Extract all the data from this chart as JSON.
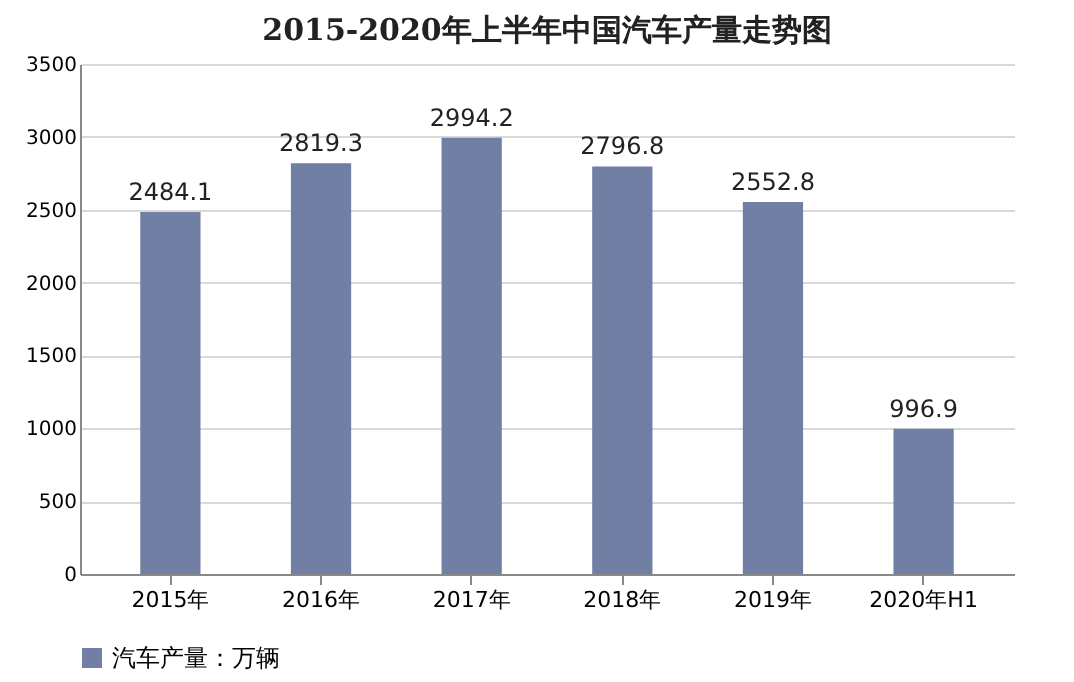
{
  "chart_data": {
    "type": "bar",
    "title": "2015-2020年上半年中国汽车产量走势图",
    "categories": [
      "2015年",
      "2016年",
      "2017年",
      "2018年",
      "2019年",
      "2020年H1"
    ],
    "series": [
      {
        "name": "汽车产量：万辆",
        "color": "#717fa5",
        "values": [
          2484.1,
          2819.3,
          2994.2,
          2796.8,
          2552.8,
          996.9
        ]
      }
    ],
    "ylim": [
      0,
      3500
    ],
    "yticks": [
      0,
      500,
      1000,
      1500,
      2000,
      2500,
      3000,
      3500
    ],
    "grid": "y",
    "legend": "bottom",
    "data_labels": true
  }
}
